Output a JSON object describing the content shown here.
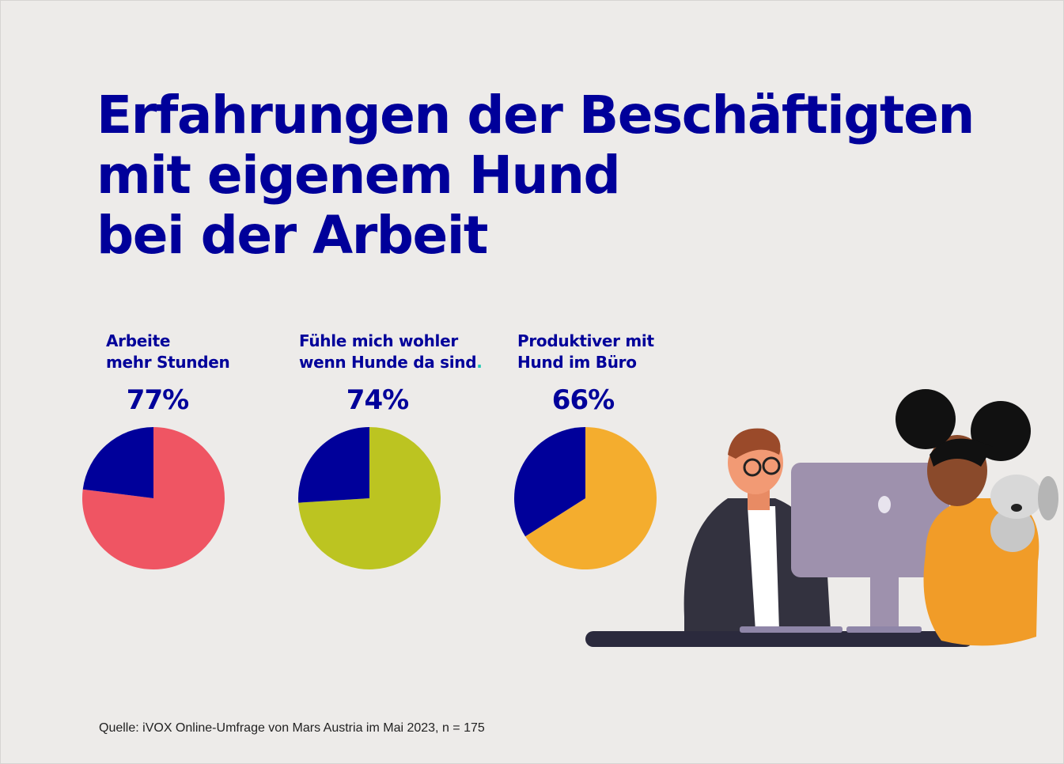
{
  "chart_data": [
    {
      "type": "pie",
      "title_lines": [
        "Arbeite",
        "mehr Stunden"
      ],
      "value_label": "77%",
      "values": [
        77,
        23
      ],
      "colors": [
        "#ef5563",
        "#00009a"
      ]
    },
    {
      "type": "pie",
      "title_lines": [
        "Fühle mich wohler",
        "wenn Hunde da sind"
      ],
      "title_suffix": ".",
      "value_label": "74%",
      "values": [
        74,
        26
      ],
      "colors": [
        "#bcc421",
        "#00009a"
      ]
    },
    {
      "type": "pie",
      "title_lines": [
        "Produktiver mit",
        "Hund im Büro"
      ],
      "value_label": "66%",
      "values": [
        66,
        34
      ],
      "colors": [
        "#f4ad2e",
        "#00009a"
      ]
    }
  ],
  "title": "Erfahrungen der Beschäftigten\nmit eigenem Hund\nbei der Arbeit",
  "labels": [
    "Arbeite\nmehr Stunden",
    "Fühle mich wohler\nwenn Hunde da sind",
    "Produktiver mit\nHund im Büro"
  ],
  "suffix": ".",
  "source": "Quelle: iVOX Online-Umfrage von Mars Austria im Mai 2023, n = 175",
  "colors": {
    "primary": "#00009a",
    "background": "#edebe9",
    "accent_dot": "#1ec9b4"
  }
}
